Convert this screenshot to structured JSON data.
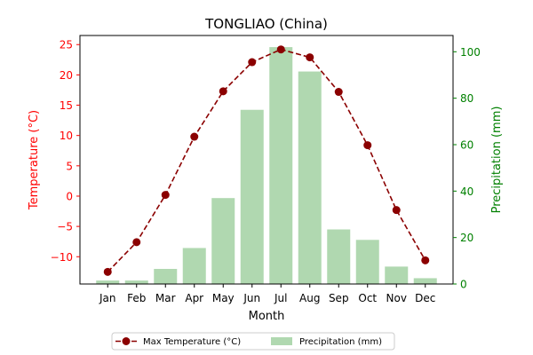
{
  "chart_data": {
    "type": "bar+line",
    "title": "TONGLIAO (China)",
    "xlabel": "Month",
    "categories": [
      "Jan",
      "Feb",
      "Mar",
      "Apr",
      "May",
      "Jun",
      "Jul",
      "Aug",
      "Sep",
      "Oct",
      "Nov",
      "Dec"
    ],
    "y_left": {
      "label": "Temperature (°C)",
      "ticks": [
        "−10",
        "−5",
        "0",
        "5",
        "10",
        "15",
        "20",
        "25"
      ],
      "tick_values": [
        -10,
        -5,
        0,
        5,
        10,
        15,
        20,
        25
      ],
      "range": [
        -14.5,
        26.5
      ],
      "color": "#ff0000"
    },
    "y_right": {
      "label": "Precipitation (mm)",
      "ticks": [
        "0",
        "20",
        "40",
        "60",
        "80",
        "100"
      ],
      "tick_values": [
        0,
        20,
        40,
        60,
        80,
        100
      ],
      "range": [
        0,
        107
      ],
      "color": "#008000"
    },
    "series": [
      {
        "name": "Max Temperature (°C)",
        "type": "line",
        "axis": "left",
        "color": "#8b0000",
        "values": [
          -12.5,
          -7.6,
          0.2,
          9.8,
          17.3,
          22.1,
          24.2,
          22.9,
          17.2,
          8.4,
          -2.3,
          -10.6
        ]
      },
      {
        "name": "Precipitation (mm)",
        "type": "bar",
        "axis": "right",
        "color": "#b0d8b0",
        "values": [
          1.5,
          1.5,
          6.5,
          15.5,
          37.0,
          75.0,
          102.0,
          91.5,
          23.5,
          19.0,
          7.5,
          2.5
        ]
      }
    ],
    "legend": {
      "placement": "bottom-center"
    }
  }
}
